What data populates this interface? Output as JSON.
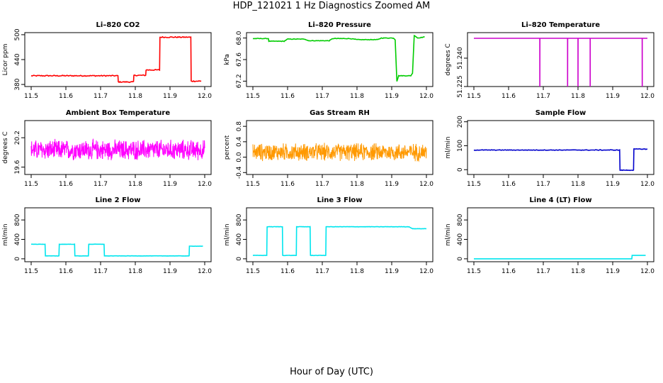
{
  "figure": {
    "title": "HDP_121021  1 Hz Diagnostics Zoomed AM",
    "xlabel": "Hour of Day (UTC)"
  },
  "chart_data": [
    {
      "type": "line",
      "title": "Li–820 CO2",
      "ylabel": "Licor ppm",
      "color": "#ff0000",
      "xlim": [
        11.5,
        12.0
      ],
      "ylim": [
        375,
        505
      ],
      "xticks": [
        "11.5",
        "11.6",
        "11.7",
        "11.8",
        "11.9",
        "12.0"
      ],
      "yticks": [
        "380",
        "440",
        "500"
      ],
      "series": [
        {
          "x": [
            11.5,
            11.75,
            11.751,
            11.795,
            11.796,
            11.83,
            11.831,
            11.87,
            11.871,
            11.96,
            11.961,
            11.99
          ],
          "y": [
            401,
            401,
            386,
            386,
            402,
            402,
            415,
            415,
            494,
            494,
            388,
            388
          ]
        }
      ],
      "noise": 1.2
    },
    {
      "type": "line",
      "title": "Li–820 Pressure",
      "ylabel": "kPa",
      "color": "#00cc00",
      "xlim": [
        11.5,
        12.0
      ],
      "ylim": [
        67.1,
        68.1
      ],
      "xticks": [
        "11.5",
        "11.6",
        "11.7",
        "11.8",
        "11.9",
        "12.0"
      ],
      "yticks": [
        "67.2",
        "67.6",
        "68.0"
      ],
      "series": [
        {
          "x": [
            11.5,
            11.545,
            11.546,
            11.59,
            11.6,
            11.65,
            11.66,
            11.72,
            11.73,
            11.78,
            11.8,
            11.86,
            11.87,
            11.905,
            11.91,
            11.915,
            11.92,
            11.955,
            11.96,
            11.965,
            11.975,
            11.995
          ],
          "y": [
            67.99,
            67.99,
            67.94,
            67.94,
            67.98,
            67.98,
            67.95,
            67.95,
            67.99,
            67.99,
            67.97,
            67.97,
            68.0,
            68.0,
            67.97,
            67.2,
            67.3,
            67.3,
            67.35,
            68.05,
            68.0,
            68.02
          ]
        }
      ],
      "noise": 0.005
    },
    {
      "type": "line",
      "title": "Li–820 Temperature",
      "ylabel": "degrees C",
      "color": "#cc00cc",
      "xlim": [
        11.5,
        12.0
      ],
      "ylim": [
        51.225,
        51.2535
      ],
      "xticks": [
        "11.5",
        "11.6",
        "11.7",
        "11.8",
        "11.9",
        "12.0"
      ],
      "yticks": [
        "51.225",
        "51.240"
      ],
      "series": [
        {
          "x": [
            11.5,
            11.69,
            11.6901,
            11.6902,
            11.77,
            11.7701,
            11.7702,
            11.8,
            11.8001,
            11.8002,
            11.835,
            11.8351,
            11.8352,
            11.985,
            11.9851,
            11.9852,
            12.0
          ],
          "y": [
            51.2505,
            51.2505,
            51.225,
            51.2505,
            51.2505,
            51.225,
            51.2505,
            51.2505,
            51.225,
            51.2505,
            51.2505,
            51.225,
            51.2505,
            51.2505,
            51.225,
            51.2505,
            51.2505
          ]
        }
      ],
      "noise": 0
    },
    {
      "type": "line",
      "title": "Ambient Box Temperature",
      "ylabel": "degrees C",
      "color": "#ff00ff",
      "xlim": [
        11.5,
        12.0
      ],
      "ylim": [
        19.45,
        20.55
      ],
      "xticks": [
        "11.5",
        "11.6",
        "11.7",
        "11.8",
        "11.9",
        "12.0"
      ],
      "yticks": [
        "19.6",
        "20.2"
      ],
      "series": [
        {
          "x": [
            11.5,
            12.0
          ],
          "y": [
            19.95,
            19.95
          ]
        }
      ],
      "noise": 0.18,
      "points": 700
    },
    {
      "type": "line",
      "title": "Gas Stream RH",
      "ylabel": "percent",
      "color": "#ff9900",
      "xlim": [
        11.5,
        12.0
      ],
      "ylim": [
        -0.45,
        0.95
      ],
      "xticks": [
        "11.5",
        "11.6",
        "11.7",
        "11.8",
        "11.9",
        "12.0"
      ],
      "yticks": [
        "-0.4",
        "0.0",
        "0.4",
        "0.8"
      ],
      "series": [
        {
          "x": [
            11.5,
            12.0
          ],
          "y": [
            0.13,
            0.13
          ]
        }
      ],
      "noise": 0.2,
      "points": 650
    },
    {
      "type": "line",
      "title": "Sample Flow",
      "ylabel": "ml/min",
      "color": "#0000cc",
      "xlim": [
        11.5,
        12.0
      ],
      "ylim": [
        -20,
        205
      ],
      "xticks": [
        "11.5",
        "11.6",
        "11.7",
        "11.8",
        "11.9",
        "12.0"
      ],
      "yticks": [
        "0",
        "100",
        "200"
      ],
      "series": [
        {
          "x": [
            11.5,
            11.92,
            11.921,
            11.96,
            11.961,
            12.0
          ],
          "y": [
            82,
            82,
            -2,
            -2,
            86,
            86
          ]
        }
      ],
      "noise": 1.2
    },
    {
      "type": "line",
      "title": "Line 2 Flow",
      "ylabel": "ml/min",
      "color": "#00e5ee",
      "xlim": [
        11.5,
        12.0
      ],
      "ylim": [
        -60,
        1050
      ],
      "xticks": [
        "11.5",
        "11.6",
        "11.7",
        "11.8",
        "11.9",
        "12.0"
      ],
      "yticks": [
        "0",
        "400",
        "800"
      ],
      "series": [
        {
          "x": [
            11.5,
            11.54,
            11.541,
            11.58,
            11.581,
            11.625,
            11.626,
            11.665,
            11.666,
            11.71,
            11.711,
            11.955,
            11.956,
            11.995
          ],
          "y": [
            300,
            300,
            60,
            60,
            300,
            300,
            60,
            60,
            300,
            300,
            60,
            60,
            260,
            260
          ]
        }
      ],
      "noise": 2
    },
    {
      "type": "line",
      "title": "Line 3 Flow",
      "ylabel": "ml/min",
      "color": "#00e5ee",
      "xlim": [
        11.5,
        12.0
      ],
      "ylim": [
        -60,
        1050
      ],
      "xticks": [
        "11.5",
        "11.6",
        "11.7",
        "11.8",
        "11.9",
        "12.0"
      ],
      "yticks": [
        "0",
        "400",
        "800"
      ],
      "series": [
        {
          "x": [
            11.5,
            11.54,
            11.541,
            11.585,
            11.586,
            11.625,
            11.626,
            11.665,
            11.666,
            11.71,
            11.711,
            11.95,
            11.96,
            12.0
          ],
          "y": [
            70,
            70,
            660,
            660,
            70,
            70,
            660,
            660,
            70,
            70,
            660,
            660,
            620,
            620
          ]
        }
      ],
      "noise": 3
    },
    {
      "type": "line",
      "title": "Line 4 (LT) Flow",
      "ylabel": "ml/min",
      "color": "#00e5ee",
      "xlim": [
        11.5,
        12.0
      ],
      "ylim": [
        -60,
        1050
      ],
      "xticks": [
        "11.5",
        "11.6",
        "11.7",
        "11.8",
        "11.9",
        "12.0"
      ],
      "yticks": [
        "0",
        "400",
        "800"
      ],
      "series": [
        {
          "x": [
            11.5,
            11.955,
            11.956,
            11.995
          ],
          "y": [
            0,
            0,
            70,
            70
          ]
        }
      ],
      "noise": 0.5
    }
  ]
}
